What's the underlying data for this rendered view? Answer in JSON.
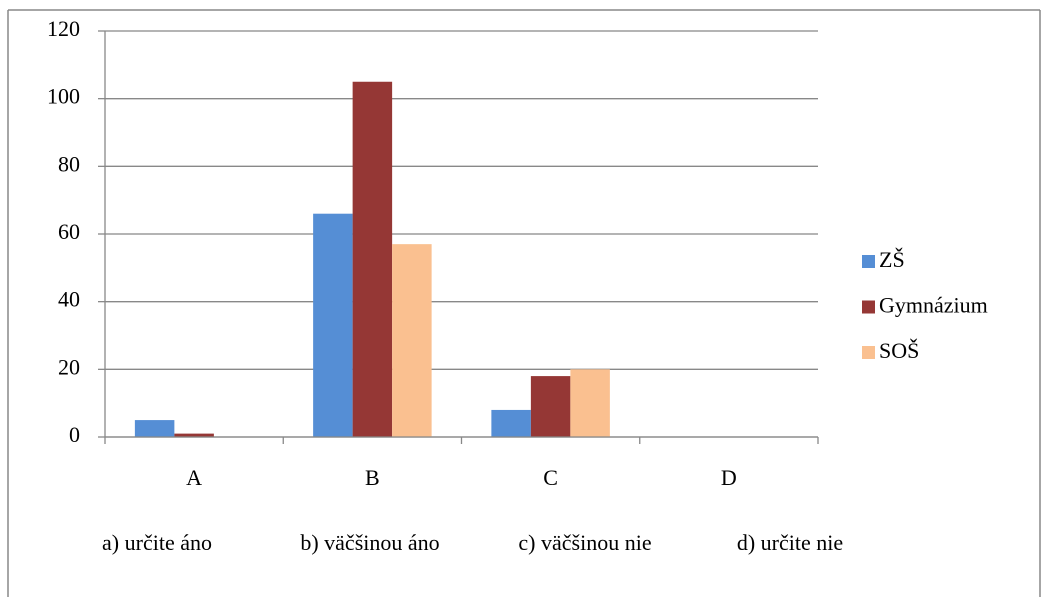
{
  "chart_data": {
    "type": "bar",
    "categories": [
      "A",
      "B",
      "C",
      "D"
    ],
    "series": [
      {
        "name": "ZŠ",
        "color": "#558ed5",
        "values": [
          5,
          66,
          8,
          0
        ]
      },
      {
        "name": "Gymnázium",
        "color": "#953735",
        "values": [
          1,
          105,
          18,
          0
        ]
      },
      {
        "name": "SOŠ",
        "color": "#fac090",
        "values": [
          0,
          57,
          20,
          0
        ]
      }
    ],
    "ylim": [
      0,
      120
    ],
    "yticks": [
      0,
      20,
      40,
      60,
      80,
      100,
      120
    ],
    "grid": true,
    "legend": "right",
    "annotations": [
      "a) určite áno",
      "b) väčšinou áno",
      "c) väčšinou nie",
      "d) určite nie"
    ]
  }
}
